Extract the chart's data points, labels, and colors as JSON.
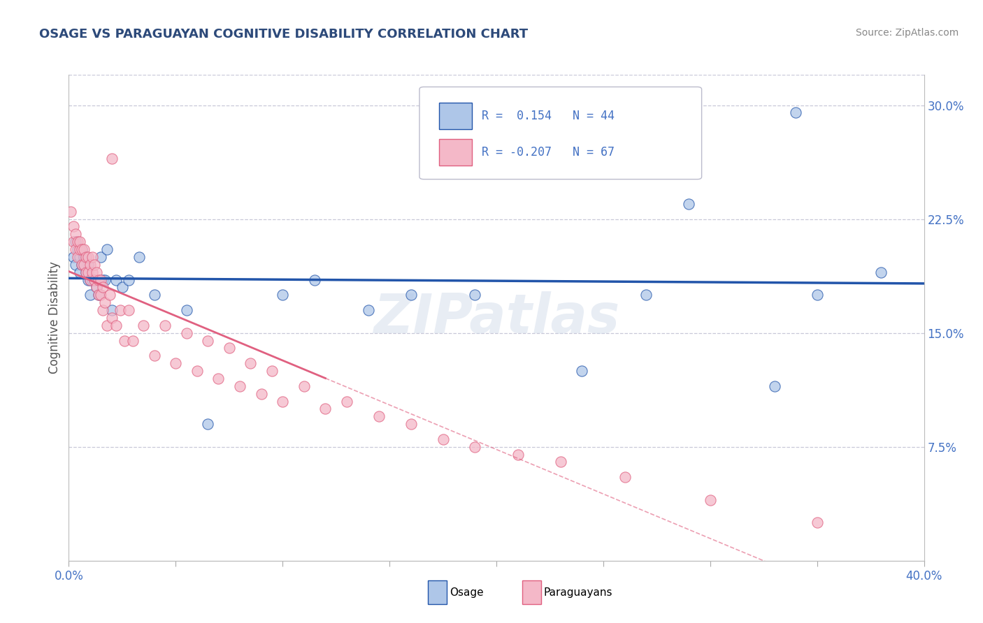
{
  "title": "OSAGE VS PARAGUAYAN COGNITIVE DISABILITY CORRELATION CHART",
  "source": "Source: ZipAtlas.com",
  "ylabel": "Cognitive Disability",
  "xlim": [
    0.0,
    0.4
  ],
  "ylim": [
    0.0,
    0.32
  ],
  "xtick_positions": [
    0.0,
    0.05,
    0.1,
    0.15,
    0.2,
    0.25,
    0.3,
    0.35,
    0.4
  ],
  "xtick_labels": [
    "0.0%",
    "",
    "",
    "",
    "",
    "",
    "",
    "",
    "40.0%"
  ],
  "yticks_right": [
    0.075,
    0.15,
    0.225,
    0.3
  ],
  "ytick_labels_right": [
    "7.5%",
    "15.0%",
    "22.5%",
    "30.0%"
  ],
  "osage_R": 0.154,
  "osage_N": 44,
  "paraguayan_R": -0.207,
  "paraguayan_N": 67,
  "osage_color": "#aec6e8",
  "paraguayan_color": "#f4b8c8",
  "osage_line_color": "#2255aa",
  "paraguayan_line_color": "#e06080",
  "watermark": "ZIPatlas",
  "background_color": "#ffffff",
  "title_color": "#2d4a7a",
  "axis_label_color": "#555555",
  "tick_color": "#4472c4",
  "grid_color": "#c8c8d8",
  "osage_x": [
    0.002,
    0.003,
    0.003,
    0.004,
    0.005,
    0.005,
    0.006,
    0.006,
    0.007,
    0.007,
    0.008,
    0.008,
    0.009,
    0.009,
    0.01,
    0.01,
    0.011,
    0.012,
    0.013,
    0.014,
    0.015,
    0.016,
    0.017,
    0.018,
    0.02,
    0.022,
    0.025,
    0.028,
    0.033,
    0.04,
    0.055,
    0.065,
    0.1,
    0.115,
    0.14,
    0.16,
    0.19,
    0.24,
    0.27,
    0.33,
    0.35,
    0.38,
    0.34,
    0.29
  ],
  "osage_y": [
    0.2,
    0.21,
    0.195,
    0.205,
    0.19,
    0.2,
    0.195,
    0.205,
    0.195,
    0.2,
    0.19,
    0.2,
    0.195,
    0.185,
    0.185,
    0.175,
    0.185,
    0.185,
    0.18,
    0.175,
    0.2,
    0.185,
    0.185,
    0.205,
    0.165,
    0.185,
    0.18,
    0.185,
    0.2,
    0.175,
    0.165,
    0.09,
    0.175,
    0.185,
    0.165,
    0.175,
    0.175,
    0.125,
    0.175,
    0.115,
    0.175,
    0.19,
    0.295,
    0.235
  ],
  "paraguayan_x": [
    0.001,
    0.002,
    0.002,
    0.003,
    0.003,
    0.004,
    0.004,
    0.005,
    0.005,
    0.006,
    0.006,
    0.007,
    0.007,
    0.008,
    0.008,
    0.009,
    0.009,
    0.01,
    0.01,
    0.011,
    0.011,
    0.012,
    0.012,
    0.013,
    0.013,
    0.014,
    0.014,
    0.015,
    0.015,
    0.016,
    0.016,
    0.017,
    0.018,
    0.019,
    0.02,
    0.022,
    0.024,
    0.026,
    0.028,
    0.03,
    0.035,
    0.04,
    0.045,
    0.05,
    0.055,
    0.06,
    0.065,
    0.07,
    0.075,
    0.08,
    0.085,
    0.09,
    0.095,
    0.1,
    0.11,
    0.12,
    0.13,
    0.145,
    0.16,
    0.175,
    0.19,
    0.21,
    0.23,
    0.26,
    0.3,
    0.35,
    0.02
  ],
  "paraguayan_y": [
    0.23,
    0.21,
    0.22,
    0.205,
    0.215,
    0.2,
    0.21,
    0.205,
    0.21,
    0.195,
    0.205,
    0.195,
    0.205,
    0.19,
    0.2,
    0.19,
    0.2,
    0.185,
    0.195,
    0.19,
    0.2,
    0.185,
    0.195,
    0.18,
    0.19,
    0.175,
    0.185,
    0.175,
    0.185,
    0.165,
    0.18,
    0.17,
    0.155,
    0.175,
    0.16,
    0.155,
    0.165,
    0.145,
    0.165,
    0.145,
    0.155,
    0.135,
    0.155,
    0.13,
    0.15,
    0.125,
    0.145,
    0.12,
    0.14,
    0.115,
    0.13,
    0.11,
    0.125,
    0.105,
    0.115,
    0.1,
    0.105,
    0.095,
    0.09,
    0.08,
    0.075,
    0.07,
    0.065,
    0.055,
    0.04,
    0.025,
    0.265
  ]
}
